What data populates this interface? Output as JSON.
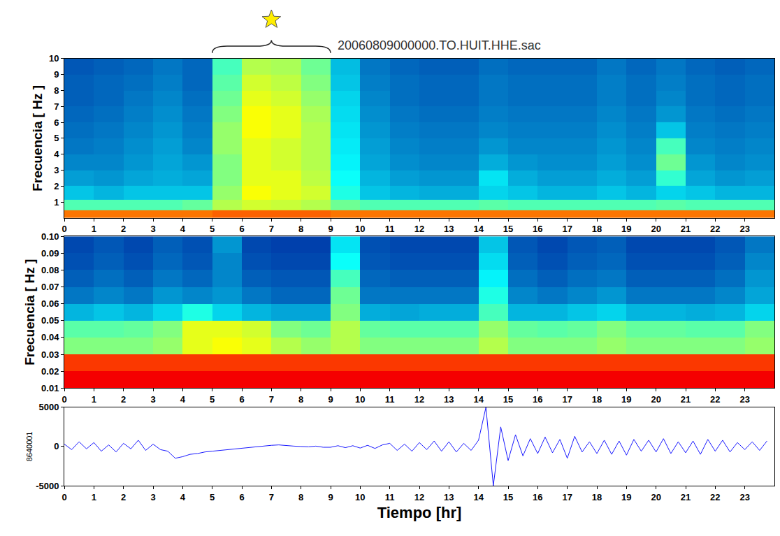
{
  "chart_data": [
    {
      "type": "heatmap",
      "title": "20060809000000.TO.HUIT.HHE.sac",
      "ylabel": "Frecuencia [ Hz ]",
      "color": "Jet",
      "highlight": [
        5,
        9
      ],
      "x": [
        0.5,
        1.5,
        2.5,
        3.5,
        4.5,
        5.5,
        6.5,
        7.5,
        8.5,
        9.5,
        10.5,
        11.5,
        12.5,
        13.5,
        14.5,
        15.5,
        16.5,
        17.5,
        18.5,
        19.5,
        20.5,
        21.5,
        22.5,
        23.5
      ],
      "y": [
        0.25,
        0.75,
        1.5,
        2.5,
        3.5,
        4.5,
        5.5,
        6.5,
        7.5,
        8.5,
        9.5
      ],
      "z": [
        [
          0.76,
          0.76,
          0.76,
          0.76,
          0.76,
          0.78,
          0.78,
          0.78,
          0.78,
          0.76,
          0.76,
          0.76,
          0.76,
          0.76,
          0.76,
          0.76,
          0.76,
          0.76,
          0.76,
          0.76,
          0.76,
          0.76,
          0.76,
          0.76
        ],
        [
          0.45,
          0.45,
          0.45,
          0.45,
          0.47,
          0.55,
          0.58,
          0.57,
          0.55,
          0.48,
          0.45,
          0.45,
          0.45,
          0.45,
          0.46,
          0.45,
          0.45,
          0.45,
          0.45,
          0.45,
          0.46,
          0.45,
          0.45,
          0.45
        ],
        [
          0.3,
          0.28,
          0.3,
          0.3,
          0.3,
          0.52,
          0.62,
          0.6,
          0.58,
          0.4,
          0.3,
          0.28,
          0.27,
          0.27,
          0.32,
          0.3,
          0.28,
          0.28,
          0.3,
          0.28,
          0.32,
          0.3,
          0.28,
          0.28
        ],
        [
          0.25,
          0.24,
          0.26,
          0.27,
          0.26,
          0.5,
          0.6,
          0.6,
          0.56,
          0.38,
          0.28,
          0.25,
          0.24,
          0.24,
          0.34,
          0.27,
          0.25,
          0.25,
          0.27,
          0.25,
          0.42,
          0.26,
          0.24,
          0.25
        ],
        [
          0.22,
          0.22,
          0.24,
          0.26,
          0.24,
          0.5,
          0.6,
          0.58,
          0.55,
          0.36,
          0.26,
          0.23,
          0.22,
          0.22,
          0.27,
          0.24,
          0.23,
          0.23,
          0.25,
          0.23,
          0.48,
          0.24,
          0.22,
          0.23
        ],
        [
          0.2,
          0.21,
          0.23,
          0.25,
          0.22,
          0.52,
          0.6,
          0.58,
          0.55,
          0.35,
          0.25,
          0.22,
          0.21,
          0.21,
          0.24,
          0.22,
          0.22,
          0.22,
          0.24,
          0.22,
          0.44,
          0.22,
          0.21,
          0.22
        ],
        [
          0.19,
          0.2,
          0.22,
          0.24,
          0.21,
          0.52,
          0.62,
          0.6,
          0.55,
          0.34,
          0.24,
          0.21,
          0.2,
          0.2,
          0.22,
          0.21,
          0.21,
          0.21,
          0.23,
          0.21,
          0.3,
          0.21,
          0.2,
          0.21
        ],
        [
          0.18,
          0.19,
          0.21,
          0.23,
          0.2,
          0.5,
          0.62,
          0.6,
          0.54,
          0.33,
          0.23,
          0.2,
          0.19,
          0.19,
          0.21,
          0.2,
          0.2,
          0.2,
          0.22,
          0.2,
          0.24,
          0.2,
          0.19,
          0.2
        ],
        [
          0.17,
          0.18,
          0.2,
          0.22,
          0.19,
          0.48,
          0.6,
          0.58,
          0.52,
          0.32,
          0.22,
          0.19,
          0.18,
          0.18,
          0.2,
          0.19,
          0.19,
          0.19,
          0.21,
          0.19,
          0.22,
          0.19,
          0.18,
          0.19
        ],
        [
          0.17,
          0.18,
          0.19,
          0.21,
          0.18,
          0.46,
          0.58,
          0.56,
          0.5,
          0.3,
          0.21,
          0.19,
          0.18,
          0.18,
          0.2,
          0.19,
          0.19,
          0.19,
          0.21,
          0.19,
          0.21,
          0.19,
          0.18,
          0.19
        ],
        [
          0.16,
          0.17,
          0.18,
          0.2,
          0.18,
          0.44,
          0.55,
          0.54,
          0.48,
          0.29,
          0.2,
          0.18,
          0.17,
          0.17,
          0.19,
          0.18,
          0.18,
          0.18,
          0.2,
          0.18,
          0.2,
          0.18,
          0.17,
          0.18
        ]
      ],
      "zlim": [
        0,
        1
      ],
      "xlim": [
        0,
        24
      ],
      "xticks": [
        0,
        1,
        2,
        3,
        4,
        5,
        6,
        7,
        8,
        9,
        10,
        11,
        12,
        13,
        14,
        15,
        16,
        17,
        18,
        19,
        20,
        21,
        22,
        23
      ],
      "ylim": [
        0,
        10
      ],
      "yticks": [
        1,
        2,
        3,
        4,
        5,
        6,
        7,
        8,
        9,
        10
      ]
    },
    {
      "type": "heatmap",
      "ylabel": "Frecuencia [ Hz ]",
      "color": "Jet",
      "x": [
        0.5,
        1.5,
        2.5,
        3.5,
        4.5,
        5.5,
        6.5,
        7.5,
        8.5,
        9.5,
        10.5,
        11.5,
        12.5,
        13.5,
        14.5,
        15.5,
        16.5,
        17.5,
        18.5,
        19.5,
        20.5,
        21.5,
        22.5,
        23.5
      ],
      "y": [
        0.015,
        0.025,
        0.035,
        0.045,
        0.055,
        0.065,
        0.075,
        0.085,
        0.095
      ],
      "z": [
        [
          0.88,
          0.88,
          0.88,
          0.88,
          0.88,
          0.88,
          0.88,
          0.88,
          0.88,
          0.88,
          0.88,
          0.88,
          0.88,
          0.88,
          0.88,
          0.88,
          0.88,
          0.88,
          0.88,
          0.88,
          0.88,
          0.88,
          0.88,
          0.88
        ],
        [
          0.82,
          0.82,
          0.82,
          0.82,
          0.82,
          0.82,
          0.82,
          0.82,
          0.82,
          0.82,
          0.82,
          0.82,
          0.82,
          0.82,
          0.82,
          0.82,
          0.82,
          0.82,
          0.82,
          0.82,
          0.82,
          0.82,
          0.82,
          0.82
        ],
        [
          0.5,
          0.5,
          0.5,
          0.52,
          0.6,
          0.62,
          0.6,
          0.55,
          0.52,
          0.55,
          0.5,
          0.5,
          0.5,
          0.5,
          0.55,
          0.5,
          0.5,
          0.5,
          0.52,
          0.5,
          0.5,
          0.5,
          0.5,
          0.52
        ],
        [
          0.46,
          0.46,
          0.47,
          0.5,
          0.6,
          0.6,
          0.58,
          0.5,
          0.48,
          0.55,
          0.47,
          0.46,
          0.46,
          0.46,
          0.52,
          0.47,
          0.46,
          0.47,
          0.5,
          0.47,
          0.47,
          0.46,
          0.46,
          0.5
        ],
        [
          0.28,
          0.3,
          0.28,
          0.32,
          0.4,
          0.32,
          0.28,
          0.26,
          0.26,
          0.5,
          0.27,
          0.26,
          0.27,
          0.27,
          0.44,
          0.28,
          0.28,
          0.3,
          0.32,
          0.28,
          0.28,
          0.27,
          0.28,
          0.32
        ],
        [
          0.2,
          0.22,
          0.2,
          0.24,
          0.22,
          0.24,
          0.2,
          0.18,
          0.18,
          0.48,
          0.2,
          0.2,
          0.2,
          0.2,
          0.4,
          0.22,
          0.2,
          0.22,
          0.24,
          0.2,
          0.2,
          0.2,
          0.22,
          0.26
        ],
        [
          0.17,
          0.19,
          0.17,
          0.2,
          0.18,
          0.22,
          0.17,
          0.16,
          0.16,
          0.44,
          0.18,
          0.17,
          0.17,
          0.17,
          0.36,
          0.19,
          0.17,
          0.19,
          0.2,
          0.17,
          0.17,
          0.17,
          0.19,
          0.24
        ],
        [
          0.15,
          0.17,
          0.15,
          0.18,
          0.16,
          0.22,
          0.15,
          0.14,
          0.14,
          0.38,
          0.16,
          0.15,
          0.15,
          0.15,
          0.33,
          0.17,
          0.15,
          0.17,
          0.18,
          0.15,
          0.15,
          0.15,
          0.17,
          0.22
        ],
        [
          0.14,
          0.16,
          0.14,
          0.17,
          0.15,
          0.24,
          0.14,
          0.13,
          0.13,
          0.34,
          0.15,
          0.14,
          0.14,
          0.14,
          0.3,
          0.16,
          0.14,
          0.16,
          0.17,
          0.14,
          0.14,
          0.14,
          0.16,
          0.2
        ]
      ],
      "zlim": [
        0,
        1
      ],
      "xlim": [
        0,
        24
      ],
      "xticks": [
        0,
        1,
        2,
        3,
        4,
        5,
        6,
        7,
        8,
        9,
        10,
        11,
        12,
        13,
        14,
        15,
        16,
        17,
        18,
        19,
        20,
        21,
        22,
        23
      ],
      "ylim": [
        0.01,
        0.1
      ],
      "yticks": [
        0.01,
        0.02,
        0.03,
        0.04,
        0.05,
        0.06,
        0.07,
        0.08,
        0.09,
        {
          "value": 0.1,
          "label": "0.10"
        }
      ]
    },
    {
      "type": "line",
      "xlabel": "Tiempo [hr]",
      "ylabel": "8640001",
      "color": "#1a1aff",
      "x": [
        0,
        0.25,
        0.5,
        0.75,
        1,
        1.25,
        1.5,
        1.75,
        2,
        2.25,
        2.5,
        2.75,
        3,
        3.25,
        3.5,
        3.75,
        4,
        4.25,
        4.5,
        4.75,
        5,
        5.25,
        5.5,
        5.75,
        6,
        6.25,
        6.5,
        6.75,
        7,
        7.25,
        7.5,
        7.75,
        8,
        8.25,
        8.5,
        8.75,
        9,
        9.25,
        9.5,
        9.75,
        10,
        10.25,
        10.5,
        10.75,
        11,
        11.25,
        11.5,
        11.75,
        12,
        12.25,
        12.5,
        12.75,
        13,
        13.25,
        13.5,
        13.75,
        14,
        14.25,
        14.5,
        14.75,
        15,
        15.25,
        15.5,
        15.75,
        16,
        16.25,
        16.5,
        16.75,
        17,
        17.25,
        17.5,
        17.75,
        18,
        18.25,
        18.5,
        18.75,
        19,
        19.25,
        19.5,
        19.75,
        20,
        20.25,
        20.5,
        20.75,
        21,
        21.25,
        21.5,
        21.75,
        22,
        22.25,
        22.5,
        22.75,
        23,
        23.25,
        23.5,
        23.75
      ],
      "values": [
        300,
        -400,
        600,
        -300,
        500,
        -600,
        200,
        -700,
        400,
        -300,
        800,
        -500,
        300,
        -400,
        -600,
        -1500,
        -1300,
        -1000,
        -900,
        -700,
        -600,
        -500,
        -400,
        -300,
        -200,
        -100,
        0,
        100,
        150,
        200,
        100,
        50,
        0,
        -50,
        50,
        -100,
        -100,
        100,
        -150,
        100,
        -200,
        150,
        -250,
        200,
        400,
        -500,
        300,
        -600,
        500,
        -400,
        700,
        -600,
        600,
        -700,
        400,
        -500,
        800,
        5000,
        -5000,
        2500,
        -1800,
        1500,
        -1200,
        1000,
        -900,
        1200,
        -800,
        900,
        -1500,
        1300,
        -700,
        600,
        -900,
        800,
        -1000,
        700,
        -1100,
        900,
        -600,
        800,
        -700,
        1000,
        -900,
        600,
        -800,
        700,
        -1000,
        900,
        -600,
        800,
        -700,
        500,
        -400,
        600,
        -500,
        700
      ],
      "xlim": [
        0,
        24
      ],
      "xticks": [
        0,
        1,
        2,
        3,
        4,
        5,
        6,
        7,
        8,
        9,
        10,
        11,
        12,
        13,
        14,
        15,
        16,
        17,
        18,
        19,
        20,
        21,
        22,
        23
      ],
      "ylim": [
        -5000,
        5000
      ],
      "yticks": [
        -5000,
        0,
        5000
      ]
    }
  ]
}
